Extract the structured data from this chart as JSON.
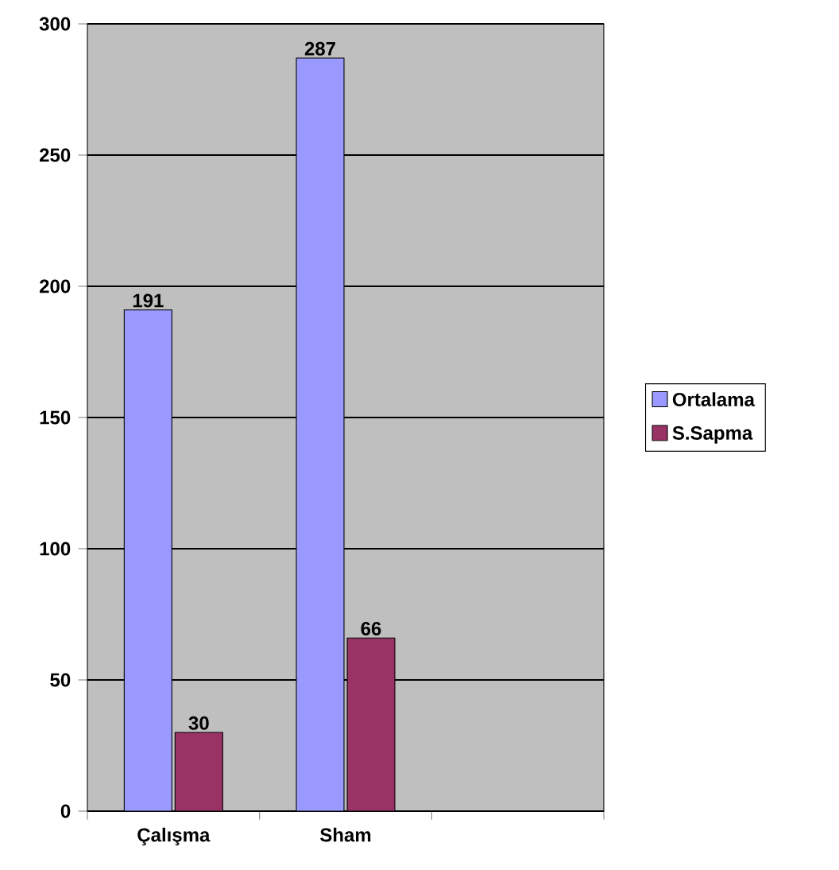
{
  "chart_data": {
    "type": "bar",
    "categories": [
      "Çalışma",
      "Sham",
      null
    ],
    "series": [
      {
        "name": "Ortalama",
        "color": "#9999ff",
        "values": [
          191,
          287,
          null
        ]
      },
      {
        "name": "S.Sapma",
        "color": "#993366",
        "values": [
          30,
          66,
          null
        ]
      }
    ],
    "ylim": [
      0,
      300
    ],
    "yticks": [
      0,
      50,
      100,
      150,
      200,
      250,
      300
    ],
    "grid": "y",
    "legend": "right",
    "data_labels": true
  }
}
